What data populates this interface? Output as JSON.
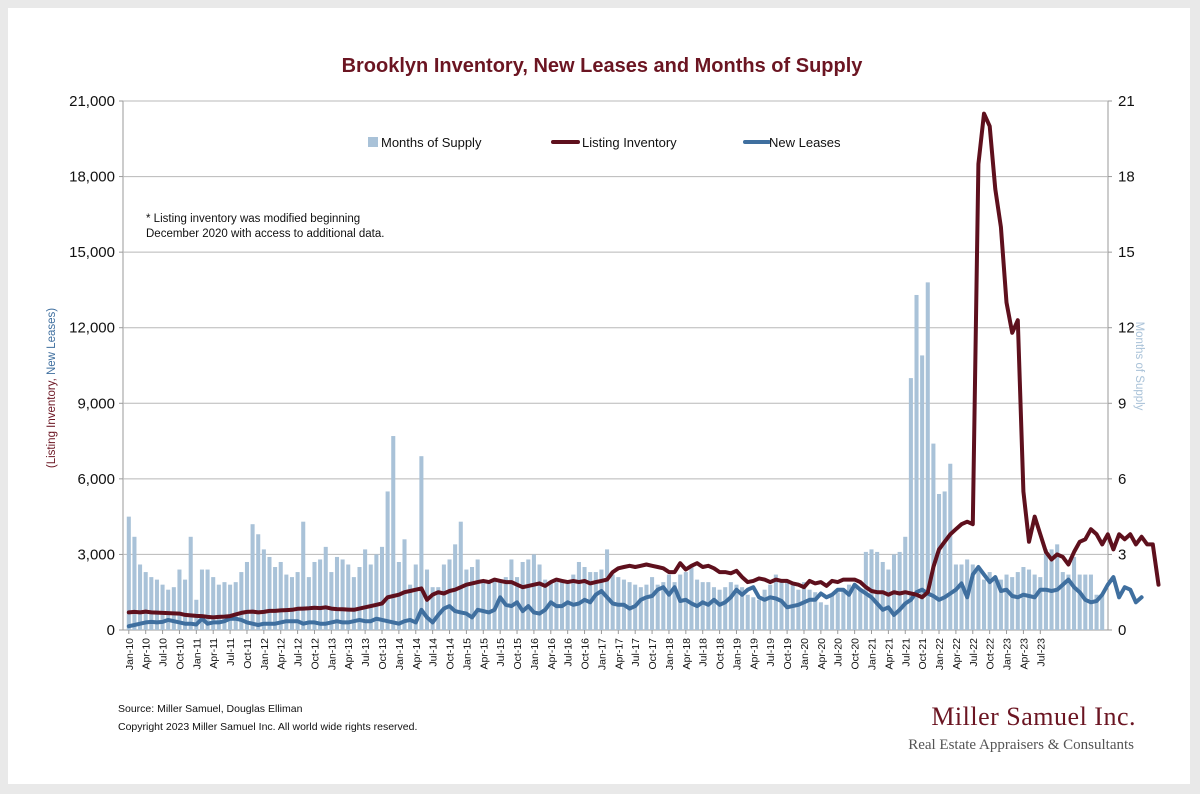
{
  "chart_data": {
    "type": "bar+line",
    "title": "Brooklyn Inventory, New Leases and Months of Supply",
    "ylabel_left_part1": "(Listing Inventory, ",
    "ylabel_left_part2": "New Leases)",
    "ylabel_right": "Months of Supply",
    "ylim_left": [
      0,
      21000
    ],
    "ylim_right": [
      0,
      21
    ],
    "yticks_left": [
      "0",
      "3,000",
      "6,000",
      "9,000",
      "12,000",
      "15,000",
      "18,000",
      "21,000"
    ],
    "yticks_right": [
      "0",
      "3",
      "6",
      "9",
      "12",
      "15",
      "18",
      "21"
    ],
    "x_start": "Jan-10",
    "x_end": "Sep-23",
    "x_tick_labels": [
      "Jan-10",
      "Apr-10",
      "Jul-10",
      "Oct-10",
      "Jan-11",
      "Apr-11",
      "Jul-11",
      "Oct-11",
      "Jan-12",
      "Apr-12",
      "Jul-12",
      "Oct-12",
      "Jan-13",
      "Apr-13",
      "Jul-13",
      "Oct-13",
      "Jan-14",
      "Apr-14",
      "Jul-14",
      "Oct-14",
      "Jan-15",
      "Apr-15",
      "Jul-15",
      "Oct-15",
      "Jan-16",
      "Apr-16",
      "Jul-16",
      "Oct-16",
      "Jan-17",
      "Apr-17",
      "Jul-17",
      "Oct-17",
      "Jan-18",
      "Apr-18",
      "Jul-18",
      "Oct-18",
      "Jan-19",
      "Apr-19",
      "Jul-19",
      "Oct-19",
      "Jan-20",
      "Apr-20",
      "Jul-20",
      "Oct-20",
      "Jan-21",
      "Apr-21",
      "Jul-21",
      "Oct-21",
      "Jan-22",
      "Apr-22",
      "Jul-22",
      "Oct-22",
      "Jan-23",
      "Apr-23",
      "Jul-23"
    ],
    "grid": true,
    "legend_position": "top",
    "series": [
      {
        "name": "Months of Supply",
        "type": "bar",
        "axis": "right",
        "color": "#a9c2d8",
        "values": [
          4.5,
          3.7,
          2.6,
          2.3,
          2.1,
          2.0,
          1.8,
          1.6,
          1.7,
          2.4,
          2.0,
          3.7,
          1.2,
          2.4,
          2.4,
          2.1,
          1.8,
          1.9,
          1.8,
          1.9,
          2.3,
          2.7,
          4.2,
          3.8,
          3.2,
          2.9,
          2.5,
          2.7,
          2.2,
          2.1,
          2.3,
          4.3,
          2.1,
          2.7,
          2.8,
          3.3,
          2.3,
          2.9,
          2.8,
          2.6,
          2.1,
          2.5,
          3.2,
          2.6,
          3.0,
          3.3,
          5.5,
          7.7,
          2.7,
          3.6,
          1.8,
          2.6,
          6.9,
          2.4,
          1.7,
          1.7,
          2.6,
          2.8,
          3.4,
          4.3,
          2.4,
          2.5,
          2.8,
          1.9,
          1.9,
          2.0,
          2.0,
          2.1,
          2.8,
          2.1,
          2.7,
          2.8,
          3.0,
          2.6,
          2.0,
          1.9,
          1.9,
          1.9,
          1.9,
          2.2,
          2.7,
          2.5,
          2.3,
          2.3,
          2.4,
          3.2,
          2.2,
          2.1,
          2.0,
          1.9,
          1.8,
          1.7,
          1.8,
          2.1,
          1.8,
          1.9,
          2.2,
          1.9,
          2.2,
          2.3,
          2.6,
          2.0,
          1.9,
          1.9,
          1.7,
          1.6,
          1.7,
          1.9,
          1.8,
          1.7,
          1.4,
          1.3,
          1.2,
          1.6,
          1.8,
          2.2,
          2.0,
          1.9,
          1.8,
          1.6,
          1.9,
          1.6,
          1.5,
          1.1,
          1.0,
          1.4,
          1.5,
          1.6,
          1.8,
          1.7,
          1.6,
          3.1,
          3.2,
          3.1,
          2.7,
          2.4,
          3.0,
          3.1,
          3.7,
          10.0,
          13.3,
          10.9,
          13.8,
          7.4,
          5.4,
          5.5,
          6.6,
          2.6,
          2.6,
          2.8,
          2.6,
          2.4,
          2.0,
          2.3,
          2.1,
          2.0,
          2.2,
          2.1,
          2.3,
          2.5,
          2.4,
          2.2,
          2.1,
          3.2,
          3.2,
          3.4,
          2.3,
          2.2,
          2.9,
          2.2,
          2.2,
          2.2,
          1.4,
          1.4
        ]
      },
      {
        "name": "Listing Inventory",
        "type": "line",
        "axis": "left",
        "color": "#5e101d",
        "values": [
          700,
          720,
          700,
          730,
          700,
          690,
          680,
          670,
          660,
          650,
          600,
          580,
          560,
          550,
          520,
          500,
          520,
          530,
          550,
          620,
          680,
          720,
          730,
          700,
          720,
          760,
          760,
          780,
          790,
          800,
          840,
          850,
          860,
          880,
          870,
          900,
          850,
          830,
          820,
          810,
          800,
          850,
          900,
          950,
          1000,
          1050,
          1300,
          1350,
          1400,
          1500,
          1550,
          1600,
          1650,
          1200,
          1400,
          1500,
          1450,
          1550,
          1600,
          1700,
          1800,
          1850,
          1900,
          1950,
          1900,
          2000,
          1950,
          1900,
          1900,
          1800,
          1700,
          1750,
          1800,
          1850,
          1750,
          1900,
          2000,
          1950,
          1900,
          1950,
          1900,
          1950,
          1850,
          1900,
          1950,
          2000,
          2300,
          2450,
          2500,
          2550,
          2500,
          2550,
          2600,
          2550,
          2500,
          2450,
          2300,
          2300,
          2650,
          2400,
          2550,
          2650,
          2500,
          2550,
          2450,
          2300,
          2300,
          2250,
          2350,
          2100,
          1900,
          1950,
          2050,
          2000,
          1900,
          2000,
          1950,
          1950,
          1850,
          1800,
          1700,
          1950,
          1850,
          1900,
          1750,
          1950,
          1900,
          2000,
          2000,
          2000,
          1900,
          1700,
          1550,
          1500,
          1500,
          1400,
          1500,
          1450,
          1500,
          1450,
          1400,
          1300,
          1500,
          2500,
          3200,
          3500,
          3800,
          4000,
          4200,
          4300,
          4200,
          18500,
          20500,
          20000,
          17500,
          16000,
          13000,
          11800,
          12300,
          5500,
          3500,
          4500,
          3800,
          3100,
          2800,
          3000,
          2900,
          2600,
          3100,
          3500,
          3600,
          4000,
          3800,
          3400,
          3800,
          3200,
          3800,
          3600,
          3800,
          3400,
          3700,
          3400,
          3400,
          1800
        ]
      },
      {
        "name": "New Leases",
        "type": "line",
        "axis": "left",
        "color": "#3f6f9f",
        "values": [
          150,
          200,
          250,
          300,
          320,
          300,
          320,
          400,
          350,
          300,
          250,
          250,
          220,
          450,
          250,
          300,
          300,
          350,
          450,
          450,
          400,
          300,
          250,
          200,
          250,
          250,
          250,
          300,
          350,
          350,
          350,
          250,
          300,
          300,
          250,
          250,
          300,
          350,
          300,
          300,
          350,
          400,
          350,
          350,
          450,
          400,
          350,
          300,
          250,
          350,
          400,
          300,
          800,
          500,
          300,
          600,
          850,
          950,
          750,
          700,
          650,
          500,
          800,
          750,
          700,
          800,
          1300,
          1000,
          950,
          1100,
          750,
          950,
          700,
          650,
          800,
          1100,
          950,
          950,
          1100,
          1000,
          1050,
          1200,
          1100,
          1400,
          1550,
          1300,
          1050,
          1000,
          1000,
          850,
          950,
          1200,
          1300,
          1350,
          1600,
          1700,
          1400,
          1700,
          1150,
          1200,
          1050,
          950,
          1100,
          1000,
          1200,
          1000,
          1100,
          1300,
          1600,
          1400,
          1600,
          1700,
          1300,
          1200,
          1300,
          1250,
          1150,
          900,
          950,
          1000,
          1100,
          1200,
          1200,
          1450,
          1300,
          1400,
          1600,
          1600,
          1400,
          1800,
          1600,
          1450,
          1300,
          1050,
          800,
          900,
          600,
          800,
          1050,
          1200,
          1500,
          1600,
          1450,
          1350,
          1200,
          1300,
          1450,
          1600,
          1850,
          1300,
          2200,
          2500,
          2200,
          1900,
          2100,
          1550,
          1600,
          1350,
          1300,
          1400,
          1350,
          1300,
          1600,
          1600,
          1550,
          1600,
          1800,
          2000,
          1700,
          1500,
          1200,
          1100,
          1150,
          1400,
          1800,
          2100,
          1300,
          1700,
          1600,
          1100,
          1300
        ]
      }
    ]
  },
  "legend": {
    "supply_label": "Months of Supply",
    "inventory_label": "Listing Inventory",
    "leases_label": "New Leases"
  },
  "note": {
    "line1": "* Listing inventory was modified beginning",
    "line2": "December 2020 with access to additional data."
  },
  "footer": {
    "source": "Source: Miller Samuel, Douglas Elliman",
    "copyright": "Copyright 2023 Miller Samuel Inc.  All world wide rights reserved."
  },
  "brand": {
    "name": "Miller Samuel Inc.",
    "tagline": "Real Estate Appraisers & Consultants"
  }
}
